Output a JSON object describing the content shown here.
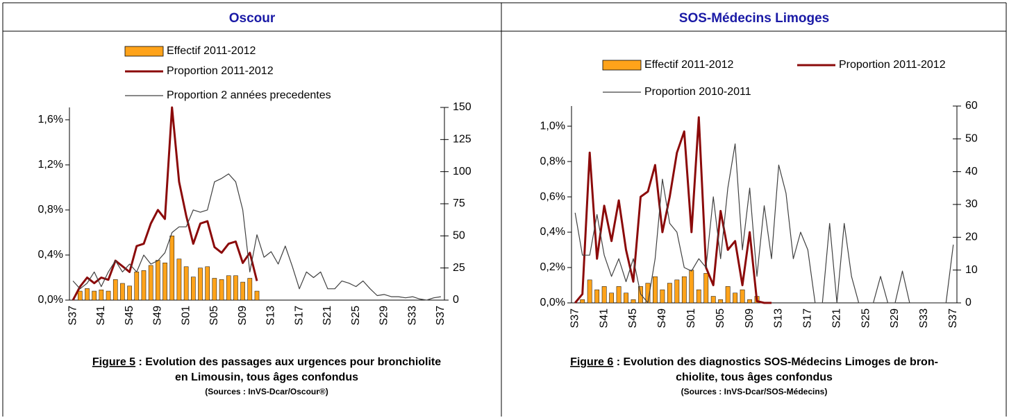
{
  "chart_data": [
    {
      "type": "combo",
      "title": "Oscour",
      "figure_label": "Figure 5",
      "caption": [
        " : Evolution des passages aux urgences pour bronchiolite",
        "en Limousin, tous âges confondus"
      ],
      "source": "(Sources : InVS-Dcar/Oscour®)",
      "categories": [
        "S37",
        null,
        null,
        null,
        "S41",
        null,
        null,
        null,
        "S45",
        null,
        null,
        null,
        "S49",
        null,
        null,
        null,
        "S01",
        null,
        null,
        null,
        "S05",
        null,
        null,
        null,
        "S09",
        null,
        null,
        null,
        "S13",
        null,
        null,
        null,
        "S17",
        null,
        null,
        null,
        "S21",
        null,
        null,
        null,
        "S25",
        null,
        null,
        null,
        "S29",
        null,
        null,
        null,
        "S33",
        null,
        null,
        null,
        "S37"
      ],
      "ylim": [
        0,
        1.71
      ],
      "yticks": [
        {
          "value": 0,
          "label": "0,0%"
        },
        {
          "value": 0.4,
          "label": "0,4%"
        },
        {
          "value": 0.8,
          "label": "0,8%"
        },
        {
          "value": 1.2,
          "label": "1,2%"
        },
        {
          "value": 1.6,
          "label": "1,6%"
        }
      ],
      "y2lim": [
        0,
        150
      ],
      "y2ticks": [
        0,
        25,
        50,
        75,
        100,
        125,
        150
      ],
      "series": [
        {
          "name": "Effectif 2011-2012",
          "type": "bar",
          "axis": "y2",
          "color": "#ffa31a",
          "values": [
            0,
            7,
            9,
            7,
            8,
            7,
            16,
            13,
            11,
            22,
            23,
            27,
            31,
            29,
            50,
            32,
            26,
            18,
            25,
            26,
            17,
            16,
            19,
            19,
            14,
            17,
            7,
            null,
            null,
            null,
            null,
            null,
            null,
            null,
            null,
            null,
            null,
            null,
            null,
            null,
            null,
            null,
            null,
            null,
            null,
            null,
            null,
            null,
            null,
            null,
            null,
            null,
            null
          ]
        },
        {
          "name": "Proportion 2011-2012",
          "type": "line",
          "color": "#8b0a0a",
          "width": 3,
          "values": [
            0,
            0.12,
            0.2,
            0.15,
            0.2,
            0.18,
            0.35,
            0.3,
            0.25,
            0.48,
            0.5,
            0.68,
            0.8,
            0.72,
            1.71,
            1.05,
            0.75,
            0.5,
            0.68,
            0.7,
            0.47,
            0.42,
            0.5,
            0.52,
            0.33,
            0.42,
            0.17,
            null,
            null,
            null,
            null,
            null,
            null,
            null,
            null,
            null,
            null,
            null,
            null,
            null,
            null,
            null,
            null,
            null,
            null,
            null,
            null,
            null,
            null,
            null,
            null,
            null,
            null
          ]
        },
        {
          "name": "Proportion 2 années precedentes",
          "type": "line",
          "color": "#404040",
          "width": 1.2,
          "values": [
            0.17,
            0.1,
            0.15,
            0.25,
            0.12,
            0.25,
            0.35,
            0.25,
            0.32,
            0.25,
            0.4,
            0.32,
            0.35,
            0.42,
            0.6,
            0.65,
            0.65,
            0.8,
            0.78,
            0.8,
            1.05,
            1.08,
            1.12,
            1.05,
            0.8,
            0.25,
            0.58,
            0.38,
            0.43,
            0.32,
            0.48,
            0.3,
            0.1,
            0.25,
            0.2,
            0.25,
            0.1,
            0.1,
            0.17,
            0.15,
            0.12,
            0.17,
            0.1,
            0.04,
            0.05,
            0.03,
            0.03,
            0.02,
            0.03,
            0.01,
            0,
            0.02,
            0.03
          ]
        }
      ]
    },
    {
      "type": "combo",
      "title": "SOS-Médecins Limoges",
      "figure_label": "Figure 6",
      "caption": [
        " : Evolution des diagnostics SOS-Médecins Limoges de bron-",
        "chiolite, tous âges confondus"
      ],
      "source": "(Sources : InVS-Dcar/SOS-Médecins)",
      "categories": [
        "S37",
        null,
        null,
        null,
        "S41",
        null,
        null,
        null,
        "S45",
        null,
        null,
        null,
        "S49",
        null,
        null,
        null,
        "S01",
        null,
        null,
        null,
        "S05",
        null,
        null,
        null,
        "S09",
        null,
        null,
        null,
        "S13",
        null,
        null,
        null,
        "S17",
        null,
        null,
        null,
        "S21",
        null,
        null,
        null,
        "S25",
        null,
        null,
        null,
        "S29",
        null,
        null,
        null,
        "S33",
        null,
        null,
        null,
        "S37"
      ],
      "ylim": [
        0,
        1.114
      ],
      "yticks": [
        {
          "value": 0,
          "label": "0,0%"
        },
        {
          "value": 0.2,
          "label": "0,2%"
        },
        {
          "value": 0.4,
          "label": "0,4%"
        },
        {
          "value": 0.6,
          "label": "0,6%"
        },
        {
          "value": 0.8,
          "label": "0,8%"
        },
        {
          "value": 1.0,
          "label": "1,0%"
        }
      ],
      "y2lim": [
        0,
        60
      ],
      "y2ticks": [
        0,
        10,
        20,
        30,
        40,
        50,
        60
      ],
      "series": [
        {
          "name": "Effectif 2011-2012",
          "type": "bar",
          "axis": "y2",
          "color": "#ffa31a",
          "values": [
            0,
            1,
            7,
            4,
            5,
            3,
            5,
            3,
            1,
            5,
            6,
            8,
            4,
            6,
            7,
            8,
            10,
            4,
            9,
            2,
            1,
            5,
            3,
            4,
            1,
            2,
            null,
            null,
            null,
            null,
            null,
            null,
            null,
            null,
            null,
            null,
            null,
            null,
            null,
            null,
            null,
            null,
            null,
            null,
            null,
            null,
            null,
            null,
            null,
            null,
            null,
            null,
            null
          ]
        },
        {
          "name": "Proportion 2011-2012",
          "type": "line",
          "color": "#8b0a0a",
          "width": 3,
          "values": [
            0,
            0.05,
            0.85,
            0.25,
            0.55,
            0.35,
            0.58,
            0.3,
            0.12,
            0.6,
            0.63,
            0.78,
            0.4,
            0.6,
            0.85,
            0.97,
            0.4,
            1.05,
            0.2,
            0.1,
            0.52,
            0.3,
            0.35,
            0.1,
            0.4,
            0.01,
            0,
            0,
            null,
            null,
            null,
            null,
            null,
            null,
            null,
            null,
            null,
            null,
            null,
            null,
            null,
            null,
            null,
            null,
            null,
            null,
            null,
            null,
            null,
            null,
            null,
            null,
            null
          ]
        },
        {
          "name": "Proportion 2010-2011",
          "type": "line",
          "color": "#404040",
          "width": 1.2,
          "values": [
            0.51,
            0.27,
            0.27,
            0.5,
            0.27,
            0.15,
            0.25,
            0.12,
            0.25,
            0.05,
            0,
            0.25,
            0.7,
            0.45,
            0.4,
            0.2,
            0.18,
            0.25,
            0.2,
            0.6,
            0.25,
            0.65,
            0.9,
            0.3,
            0.65,
            0.15,
            0.55,
            0.25,
            0.78,
            0.62,
            0.25,
            0.4,
            0.3,
            0,
            0,
            0.45,
            0,
            0.45,
            0.15,
            0,
            0,
            0,
            0.15,
            0,
            0,
            0.18,
            0,
            0,
            0,
            0,
            0,
            0,
            0.33
          ]
        }
      ]
    }
  ]
}
